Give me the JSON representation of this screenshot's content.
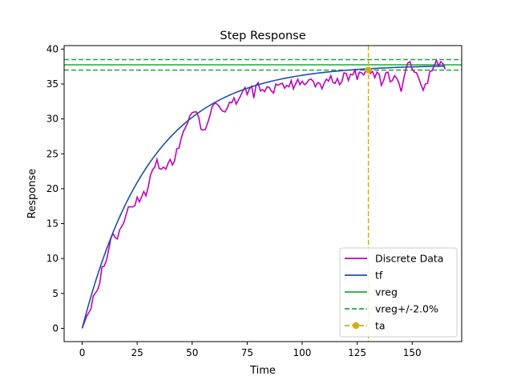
{
  "chart_data": {
    "type": "line",
    "title": "Step Response",
    "xlabel": "Time",
    "ylabel": "Response",
    "xlim": [
      -8.2,
      172.5
    ],
    "ylim": [
      -1.9,
      40.5
    ],
    "x_ticks": [
      0,
      25,
      50,
      75,
      100,
      125,
      150
    ],
    "y_ticks": [
      0,
      5,
      10,
      15,
      20,
      25,
      30,
      35,
      40
    ],
    "grid": false,
    "legend_position": "lower-right",
    "series": [
      {
        "name": "Discrete Data",
        "kind": "line",
        "color": "#bf00bf",
        "points": [
          [
            0,
            0.0
          ],
          [
            2,
            1.7
          ],
          [
            4,
            2.8
          ],
          [
            5,
            4.6
          ],
          [
            7,
            5.5
          ],
          [
            8,
            6.5
          ],
          [
            9,
            8.8
          ],
          [
            10,
            8.9
          ],
          [
            11,
            9.7
          ],
          [
            12,
            11.2
          ],
          [
            13,
            12.8
          ],
          [
            14,
            13.6
          ],
          [
            15,
            13.0
          ],
          [
            16,
            12.8
          ],
          [
            17,
            14.1
          ],
          [
            18,
            14.6
          ],
          [
            19,
            15.2
          ],
          [
            20,
            16.3
          ],
          [
            21,
            17.4
          ],
          [
            23,
            17.4
          ],
          [
            24,
            17.6
          ],
          [
            25,
            18.8
          ],
          [
            26,
            18.1
          ],
          [
            27,
            18.8
          ],
          [
            28,
            19.6
          ],
          [
            29,
            19.0
          ],
          [
            30,
            20.2
          ],
          [
            31,
            21.9
          ],
          [
            32,
            22.7
          ],
          [
            33,
            23.1
          ],
          [
            34,
            24.2
          ],
          [
            35,
            22.9
          ],
          [
            36,
            22.8
          ],
          [
            37,
            23.1
          ],
          [
            38,
            22.8
          ],
          [
            39,
            23.6
          ],
          [
            40,
            24.2
          ],
          [
            41,
            23.4
          ],
          [
            42,
            24.0
          ],
          [
            43,
            25.7
          ],
          [
            44,
            25.8
          ],
          [
            45,
            27.2
          ],
          [
            46,
            28.2
          ],
          [
            47,
            28.8
          ],
          [
            48,
            29.5
          ],
          [
            49,
            30.5
          ],
          [
            50,
            30.9
          ],
          [
            51,
            31.0
          ],
          [
            52,
            31.0
          ],
          [
            53,
            30.2
          ],
          [
            54,
            28.5
          ],
          [
            55,
            28.4
          ],
          [
            56,
            28.5
          ],
          [
            57,
            29.4
          ],
          [
            58,
            30.4
          ],
          [
            59,
            31.7
          ],
          [
            60,
            32.2
          ],
          [
            61,
            32.2
          ],
          [
            62,
            31.9
          ],
          [
            63,
            31.4
          ],
          [
            64,
            31.1
          ],
          [
            65,
            31.0
          ],
          [
            66,
            31.6
          ],
          [
            67,
            32.4
          ],
          [
            68,
            32.3
          ],
          [
            69,
            33.0
          ],
          [
            70,
            32.1
          ],
          [
            71,
            32.7
          ],
          [
            72,
            33.3
          ],
          [
            73,
            34.0
          ],
          [
            74,
            34.5
          ],
          [
            75,
            33.5
          ],
          [
            76,
            34.3
          ],
          [
            77,
            34.7
          ],
          [
            78,
            33.0
          ],
          [
            79,
            34.8
          ],
          [
            80,
            35.2
          ],
          [
            81,
            34.0
          ],
          [
            82,
            34.2
          ],
          [
            83,
            33.9
          ],
          [
            84,
            34.6
          ],
          [
            85,
            34.5
          ],
          [
            86,
            34.0
          ],
          [
            87,
            33.7
          ],
          [
            88,
            35.0
          ],
          [
            89,
            34.8
          ],
          [
            90,
            35.0
          ],
          [
            91,
            35.1
          ],
          [
            92,
            34.4
          ],
          [
            93,
            34.8
          ],
          [
            94,
            34.6
          ],
          [
            95,
            35.5
          ],
          [
            96,
            34.3
          ],
          [
            97,
            35.0
          ],
          [
            98,
            35.7
          ],
          [
            99,
            34.9
          ],
          [
            100,
            35.4
          ],
          [
            101,
            34.9
          ],
          [
            102,
            35.1
          ],
          [
            103,
            35.6
          ],
          [
            104,
            35.7
          ],
          [
            105,
            35.4
          ],
          [
            106,
            34.6
          ],
          [
            107,
            35.2
          ],
          [
            108,
            35.1
          ],
          [
            109,
            34.3
          ],
          [
            110,
            35.1
          ],
          [
            111,
            35.7
          ],
          [
            112,
            35.4
          ],
          [
            113,
            36.2
          ],
          [
            114,
            35.2
          ],
          [
            115,
            35.1
          ],
          [
            116,
            35.8
          ],
          [
            117,
            34.9
          ],
          [
            118,
            35.3
          ],
          [
            119,
            36.6
          ],
          [
            120,
            36.5
          ],
          [
            121,
            35.5
          ],
          [
            122,
            36.4
          ],
          [
            123,
            36.3
          ],
          [
            124,
            37.0
          ],
          [
            125,
            35.6
          ],
          [
            126,
            36.7
          ],
          [
            127,
            36.6
          ],
          [
            128,
            36.3
          ],
          [
            129,
            37.0
          ],
          [
            130,
            37.0
          ],
          [
            131,
            36.5
          ],
          [
            132,
            36.8
          ],
          [
            133,
            35.9
          ],
          [
            134,
            36.7
          ],
          [
            135,
            36.4
          ],
          [
            136,
            34.8
          ],
          [
            137,
            35.5
          ],
          [
            138,
            36.6
          ],
          [
            139,
            36.7
          ],
          [
            140,
            35.3
          ],
          [
            141,
            35.5
          ],
          [
            142,
            36.2
          ],
          [
            143,
            35.8
          ],
          [
            144,
            35.1
          ],
          [
            145,
            33.9
          ],
          [
            146,
            35.5
          ],
          [
            147,
            37.0
          ],
          [
            148,
            38.0
          ],
          [
            149,
            38.2
          ],
          [
            150,
            37.1
          ],
          [
            151,
            36.7
          ],
          [
            152,
            36.6
          ],
          [
            153,
            35.8
          ],
          [
            154,
            34.9
          ],
          [
            155,
            34.1
          ],
          [
            156,
            35.0
          ],
          [
            157,
            35.1
          ],
          [
            158,
            36.8
          ],
          [
            159,
            36.9
          ],
          [
            160,
            37.6
          ],
          [
            161,
            38.4
          ],
          [
            162,
            37.6
          ],
          [
            163,
            38.2
          ],
          [
            164,
            37.9
          ],
          [
            165,
            37.1
          ]
        ]
      },
      {
        "name": "tf",
        "kind": "curve",
        "color": "#1f4fa6",
        "gain": 37.75,
        "time_constant": 31.0,
        "x_range": [
          0,
          165
        ]
      },
      {
        "name": "vreg",
        "kind": "hline",
        "color": "#1aab3c",
        "y": 37.75
      },
      {
        "name": "vreg+/-2.0%",
        "kind": "hband",
        "color": "#1aab3c",
        "y": [
          36.99,
          38.5
        ]
      },
      {
        "name": "ta",
        "kind": "vline",
        "color": "#d4ac0d",
        "x": 130.1,
        "y": 36.99
      }
    ]
  }
}
